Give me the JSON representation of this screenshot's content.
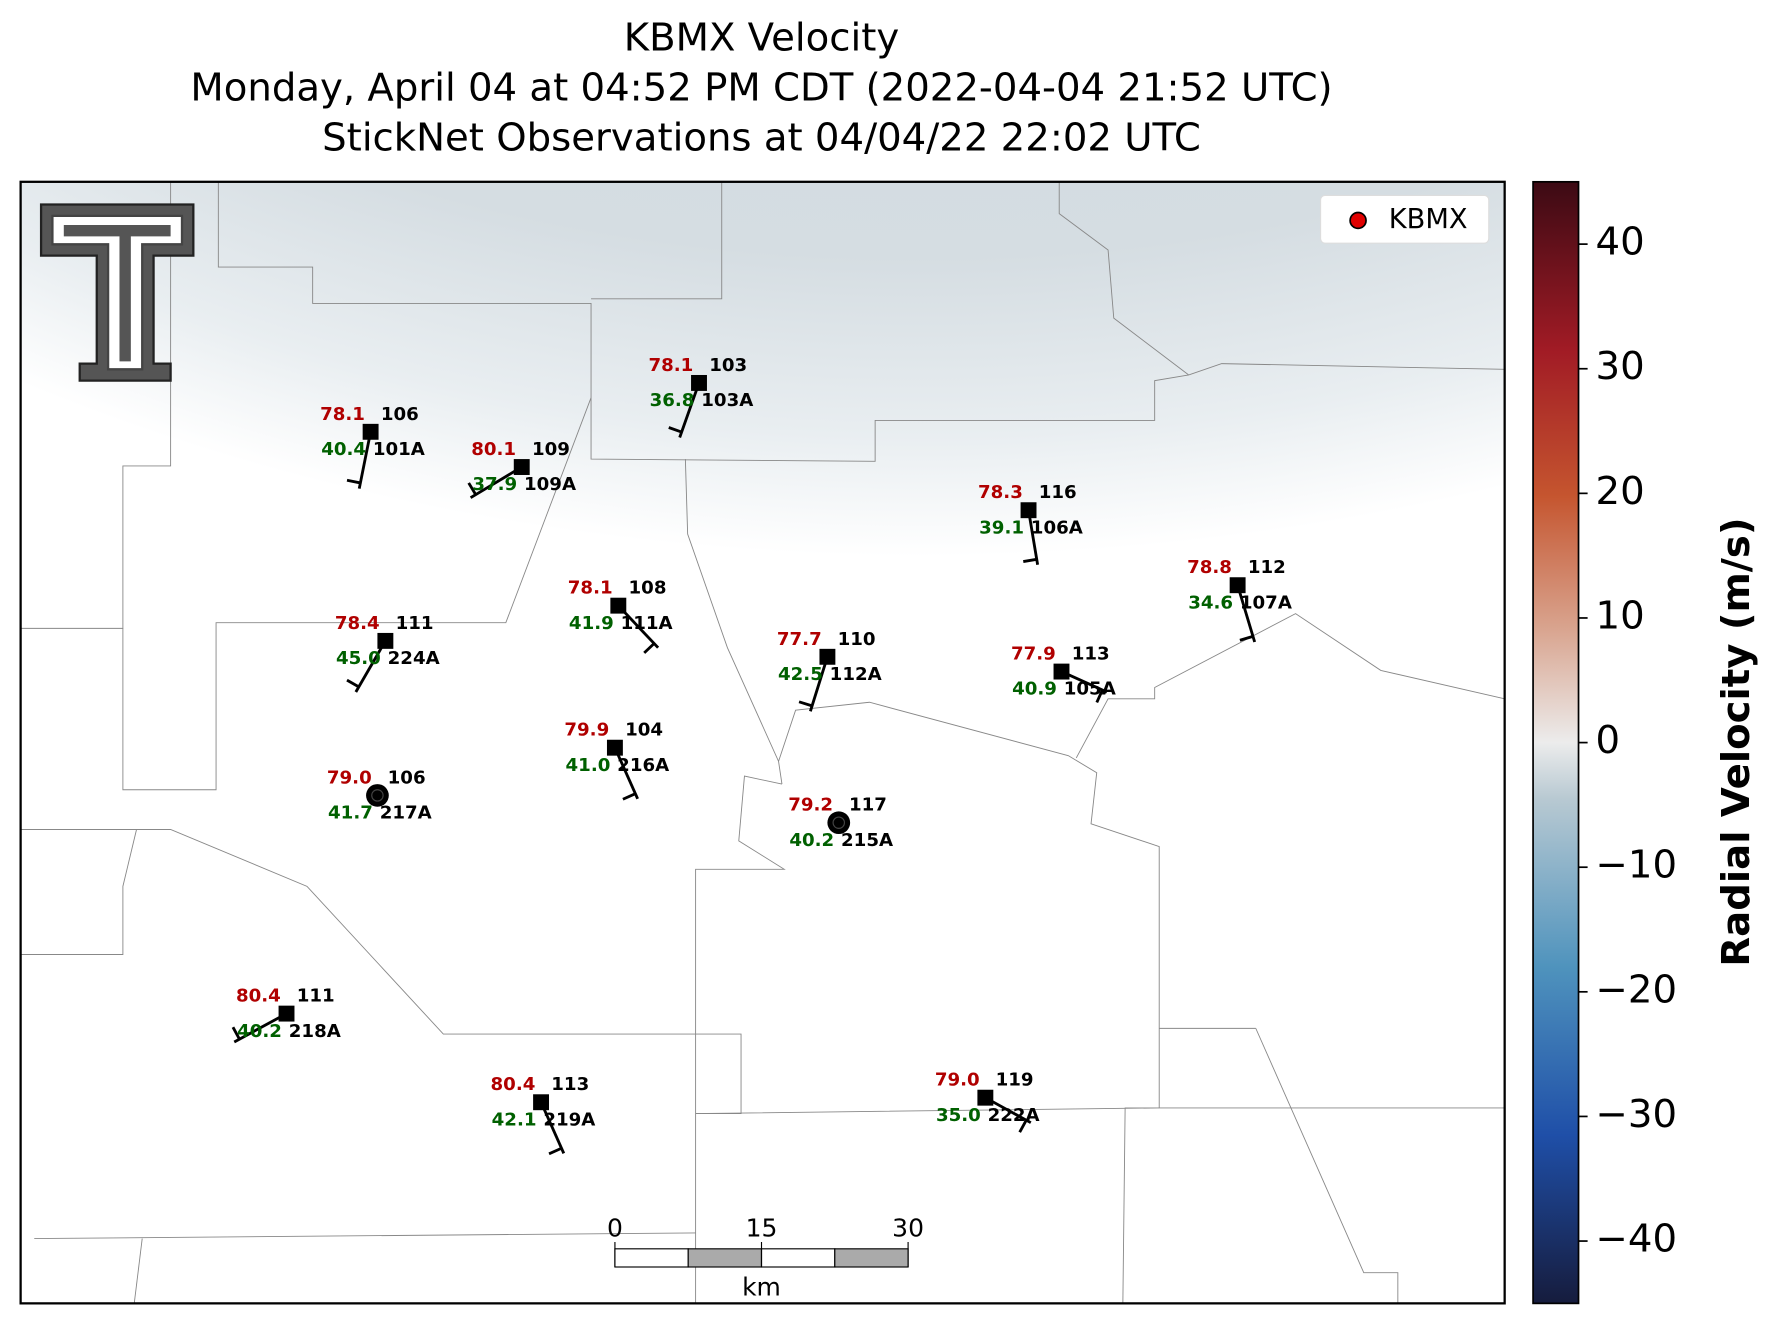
{
  "title": [
    "KBMX Velocity",
    "Monday, April 04 at 04:52 PM CDT (2022-04-04 21:52 UTC)",
    "StickNet Observations at 04/04/22 22:02 UTC"
  ],
  "legend": {
    "label": "KBMX",
    "color": "#e00000"
  },
  "colorbar": {
    "label": "Radial Velocity (m/s)",
    "lim": [
      -45,
      45
    ],
    "ticks": [
      {
        "value": -40,
        "label": "−40"
      },
      {
        "value": -30,
        "label": "−30"
      },
      {
        "value": -20,
        "label": "−20"
      },
      {
        "value": -10,
        "label": "−10"
      },
      0,
      10,
      20,
      30,
      40
    ]
  },
  "scalebar": {
    "ticks": [
      0,
      15,
      30
    ],
    "unit": "km"
  },
  "stations": [
    {
      "temp": "78.1",
      "dew": "36.8",
      "value": "103",
      "id": "103A",
      "marker": "square"
    },
    {
      "temp": "78.1",
      "dew": "40.4",
      "value": "106",
      "id": "101A",
      "marker": "square"
    },
    {
      "temp": "80.1",
      "dew": "37.9",
      "value": "109",
      "id": "109A",
      "marker": "square"
    },
    {
      "temp": "78.3",
      "dew": "39.1",
      "value": "116",
      "id": "106A",
      "marker": "square"
    },
    {
      "temp": "78.8",
      "dew": "34.6",
      "value": "112",
      "id": "107A",
      "marker": "square"
    },
    {
      "temp": "78.1",
      "dew": "41.9",
      "value": "108",
      "id": "111A",
      "marker": "square"
    },
    {
      "temp": "78.4",
      "dew": "45.0",
      "value": "111",
      "id": "224A",
      "marker": "square"
    },
    {
      "temp": "77.7",
      "dew": "42.5",
      "value": "110",
      "id": "112A",
      "marker": "square"
    },
    {
      "temp": "77.9",
      "dew": "40.9",
      "value": "113",
      "id": "105A",
      "marker": "square"
    },
    {
      "temp": "79.9",
      "dew": "41.0",
      "value": "104",
      "id": "216A",
      "marker": "square"
    },
    {
      "temp": "79.0",
      "dew": "41.7",
      "value": "106",
      "id": "217A",
      "marker": "circle"
    },
    {
      "temp": "79.2",
      "dew": "40.2",
      "value": "117",
      "id": "215A",
      "marker": "circle"
    },
    {
      "temp": "80.4",
      "dew": "40.2",
      "value": "111",
      "id": "218A",
      "marker": "square"
    },
    {
      "temp": "80.4",
      "dew": "42.1",
      "value": "113",
      "id": "219A",
      "marker": "square"
    },
    {
      "temp": "79.0",
      "dew": "35.0",
      "value": "119",
      "id": "222A",
      "marker": "square"
    }
  ]
}
